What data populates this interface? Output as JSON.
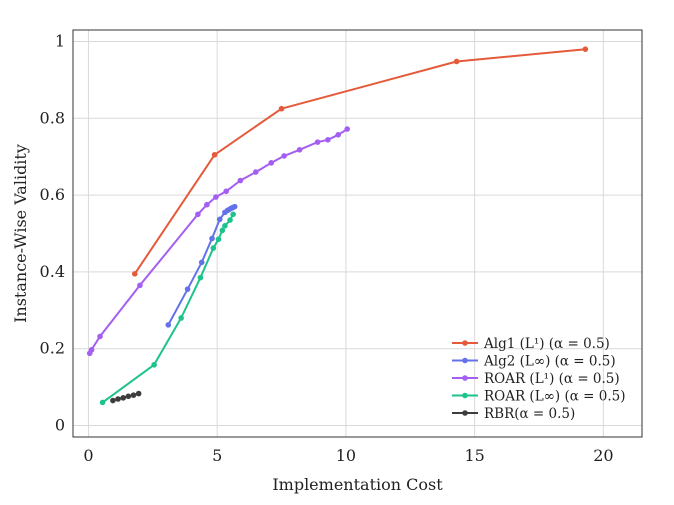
{
  "chart_data": {
    "type": "line",
    "title": "",
    "xlabel": "Implementation Cost",
    "ylabel": "Instance-Wise Validity",
    "xlim": [
      -0.6,
      21.5
    ],
    "ylim": [
      -0.03,
      1.03
    ],
    "xticks": [
      0,
      5,
      10,
      15,
      20
    ],
    "xtick_labels": [
      "0",
      "5",
      "10",
      "15",
      "20"
    ],
    "yticks": [
      0,
      0.2,
      0.4,
      0.6,
      0.8,
      1.0
    ],
    "ytick_labels": [
      "0",
      "0.2",
      "0.4",
      "0.6",
      "0.8",
      "1"
    ],
    "grid": true,
    "legend_position": "bottom-right",
    "series": [
      {
        "name": "Alg1 (L¹) (α = 0.5)",
        "color": "#e45a3a",
        "x": [
          1.8,
          4.9,
          7.5,
          14.3,
          19.3
        ],
        "y": [
          0.395,
          0.705,
          0.825,
          0.948,
          0.98
        ]
      },
      {
        "name": "Alg2 (L∞) (α = 0.5)",
        "color": "#6372ea",
        "x": [
          3.1,
          3.85,
          4.4,
          4.8,
          5.1,
          5.3,
          5.4,
          5.48,
          5.55,
          5.62,
          5.68
        ],
        "y": [
          0.262,
          0.355,
          0.425,
          0.487,
          0.537,
          0.555,
          0.56,
          0.563,
          0.566,
          0.568,
          0.57
        ]
      },
      {
        "name": "ROAR (L¹) (α = 0.5)",
        "color": "#a45ef2",
        "x": [
          0.05,
          0.12,
          0.45,
          2.0,
          4.25,
          4.6,
          4.95,
          5.35,
          5.9,
          6.5,
          7.1,
          7.6,
          8.2,
          8.9,
          9.3,
          9.7,
          10.05
        ],
        "y": [
          0.188,
          0.197,
          0.232,
          0.365,
          0.55,
          0.575,
          0.595,
          0.61,
          0.638,
          0.66,
          0.684,
          0.702,
          0.718,
          0.738,
          0.744,
          0.757,
          0.772
        ]
      },
      {
        "name": "ROAR (L∞) (α = 0.5)",
        "color": "#1cc38c",
        "x": [
          0.55,
          2.55,
          3.6,
          4.35,
          4.85,
          5.05,
          5.2,
          5.3,
          5.5,
          5.62
        ],
        "y": [
          0.06,
          0.158,
          0.28,
          0.385,
          0.462,
          0.485,
          0.508,
          0.52,
          0.535,
          0.55
        ]
      },
      {
        "name": "RBR(α = 0.5)",
        "color": "#3d3d3d",
        "x": [
          0.95,
          1.15,
          1.35,
          1.55,
          1.75,
          1.95
        ],
        "y": [
          0.065,
          0.069,
          0.072,
          0.076,
          0.079,
          0.083
        ]
      }
    ]
  }
}
